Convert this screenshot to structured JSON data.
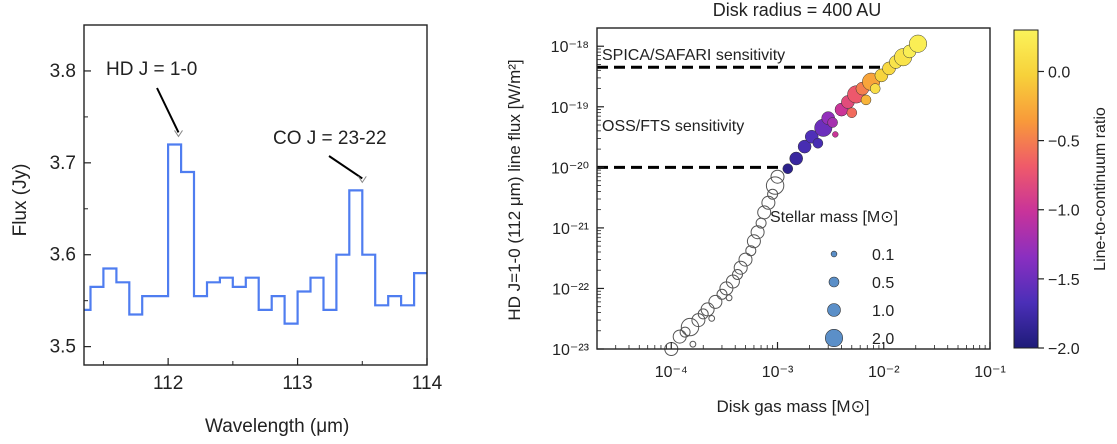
{
  "colors": {
    "spectrum_line": "#4f7df0",
    "axis": "#222222",
    "threshold_line": "#000000",
    "open_marker": "#555555",
    "colormap": [
      "#1e1b78",
      "#4b2fb8",
      "#8a2fc0",
      "#c8339a",
      "#ef5a6a",
      "#f89a3a",
      "#f7d13a",
      "#fbf35a"
    ]
  },
  "chart_data": [
    {
      "type": "line",
      "title": "",
      "xlabel": "Wavelength (μm)",
      "ylabel": "Flux (Jy)",
      "xlim": [
        111.35,
        114.0
      ],
      "ylim": [
        3.48,
        3.85
      ],
      "xticks": [
        "112",
        "113",
        "114"
      ],
      "yticks": [
        "3.5",
        "3.6",
        "3.7",
        "3.8"
      ],
      "x": [
        111.35,
        111.45,
        111.55,
        111.65,
        111.75,
        111.85,
        111.95,
        112.05,
        112.15,
        112.25,
        112.35,
        112.45,
        112.55,
        112.65,
        112.75,
        112.85,
        112.95,
        113.05,
        113.15,
        113.25,
        113.35,
        113.45,
        113.55,
        113.65,
        113.75,
        113.85,
        113.95
      ],
      "y": [
        3.54,
        3.565,
        3.585,
        3.57,
        3.535,
        3.555,
        3.555,
        3.72,
        3.69,
        3.555,
        3.57,
        3.575,
        3.565,
        3.575,
        3.54,
        3.555,
        3.525,
        3.56,
        3.575,
        3.54,
        3.6,
        3.67,
        3.6,
        3.545,
        3.555,
        3.545,
        3.58
      ],
      "annotations": [
        {
          "text": "HD J = 1-0",
          "x": 112.08,
          "y": 3.72
        },
        {
          "text": "CO J = 23-22",
          "x": 113.5,
          "y": 3.67
        }
      ]
    },
    {
      "type": "scatter",
      "title": "Disk radius = 400 AU",
      "xlabel": "Disk gas mass [M⊙]",
      "ylabel": "HD J=1-0 (112 μm) line flux [W/m²]",
      "x_scale": "log",
      "y_scale": "log",
      "xlim": [
        2e-05,
        0.1
      ],
      "ylim": [
        1e-23,
        2e-18
      ],
      "xticks": [
        "10⁻⁴",
        "10⁻³",
        "10⁻²",
        "10⁻¹"
      ],
      "yticks": [
        "10⁻¹⁸",
        "10⁻¹⁹",
        "10⁻²⁰",
        "10⁻²¹",
        "10⁻²²",
        "10⁻²³"
      ],
      "thresholds": [
        {
          "label": "SPICA/SAFARI sensitivity",
          "flux": 4.5e-19,
          "x_end": 0.013
        },
        {
          "label": "OSS/FTS sensitivity",
          "flux": 1e-20,
          "x_end": 0.0013
        }
      ],
      "size_legend": {
        "title": "Stellar mass [M⊙]",
        "entries": [
          {
            "label": "0.1",
            "mass": 0.1
          },
          {
            "label": "0.5",
            "mass": 0.5
          },
          {
            "label": "1.0",
            "mass": 1.0
          },
          {
            "label": "2.0",
            "mass": 2.0
          }
        ]
      },
      "colorbar": {
        "label": "Line-to-continuum ratio",
        "range": [
          -2.0,
          0.3
        ],
        "ticks": [
          "0.0",
          "−0.5",
          "−1.0",
          "−1.5",
          "−2.0"
        ]
      },
      "points": [
        {
          "x": 0.0001,
          "y": 1e-23,
          "m": 1.0,
          "c": null
        },
        {
          "x": 0.00012,
          "y": 1.6e-23,
          "m": 1.0,
          "c": null
        },
        {
          "x": 0.000135,
          "y": 1.9e-23,
          "m": 0.5,
          "c": null
        },
        {
          "x": 0.00015,
          "y": 2.3e-23,
          "m": 2.0,
          "c": null
        },
        {
          "x": 0.00016,
          "y": 1.2e-23,
          "m": 0.1,
          "c": null
        },
        {
          "x": 0.00018,
          "y": 3e-23,
          "m": 1.0,
          "c": null
        },
        {
          "x": 0.0002,
          "y": 3.8e-23,
          "m": 0.5,
          "c": null
        },
        {
          "x": 0.00022,
          "y": 4.5e-23,
          "m": 1.0,
          "c": null
        },
        {
          "x": 0.00024,
          "y": 3.2e-23,
          "m": 0.1,
          "c": null
        },
        {
          "x": 0.00026,
          "y": 6e-23,
          "m": 1.0,
          "c": null
        },
        {
          "x": 0.0003,
          "y": 8e-23,
          "m": 0.5,
          "c": null
        },
        {
          "x": 0.00033,
          "y": 1e-22,
          "m": 1.0,
          "c": null
        },
        {
          "x": 0.00035,
          "y": 7e-23,
          "m": 0.1,
          "c": null
        },
        {
          "x": 0.00038,
          "y": 1.3e-22,
          "m": 1.0,
          "c": null
        },
        {
          "x": 0.00042,
          "y": 1.7e-22,
          "m": 0.5,
          "c": null
        },
        {
          "x": 0.00045,
          "y": 2.2e-22,
          "m": 1.0,
          "c": null
        },
        {
          "x": 0.0005,
          "y": 3e-22,
          "m": 1.0,
          "c": null
        },
        {
          "x": 0.00056,
          "y": 4.2e-22,
          "m": 0.5,
          "c": null
        },
        {
          "x": 0.0006,
          "y": 6e-22,
          "m": 1.0,
          "c": null
        },
        {
          "x": 0.00065,
          "y": 8.5e-22,
          "m": 1.0,
          "c": null
        },
        {
          "x": 0.0007,
          "y": 1.2e-21,
          "m": 0.5,
          "c": null
        },
        {
          "x": 0.00075,
          "y": 1.8e-21,
          "m": 1.0,
          "c": null
        },
        {
          "x": 0.00082,
          "y": 2.6e-21,
          "m": 1.0,
          "c": null
        },
        {
          "x": 0.0009,
          "y": 3.6e-21,
          "m": 0.5,
          "c": null
        },
        {
          "x": 0.00095,
          "y": 5e-21,
          "m": 2.0,
          "c": null
        },
        {
          "x": 0.001,
          "y": 7e-21,
          "m": 1.0,
          "c": null
        },
        {
          "x": 0.00125,
          "y": 9.5e-21,
          "m": 0.5,
          "c": -1.9
        },
        {
          "x": 0.0015,
          "y": 1.4e-20,
          "m": 1.0,
          "c": -1.8
        },
        {
          "x": 0.0018,
          "y": 2.2e-20,
          "m": 1.0,
          "c": -1.7
        },
        {
          "x": 0.0021,
          "y": 3.2e-20,
          "m": 1.0,
          "c": -1.65
        },
        {
          "x": 0.0024,
          "y": 2.5e-20,
          "m": 0.5,
          "c": -1.7
        },
        {
          "x": 0.0027,
          "y": 4.5e-20,
          "m": 2.0,
          "c": -1.5
        },
        {
          "x": 0.003,
          "y": 6.5e-20,
          "m": 1.0,
          "c": -1.3
        },
        {
          "x": 0.0033,
          "y": 5.5e-20,
          "m": 0.5,
          "c": -1.2
        },
        {
          "x": 0.0035,
          "y": 3.5e-20,
          "m": 0.1,
          "c": -1.0
        },
        {
          "x": 0.004,
          "y": 9e-20,
          "m": 1.0,
          "c": -1.0
        },
        {
          "x": 0.0046,
          "y": 1.2e-19,
          "m": 1.0,
          "c": -0.8
        },
        {
          "x": 0.005,
          "y": 8e-20,
          "m": 0.5,
          "c": -0.6
        },
        {
          "x": 0.0055,
          "y": 1.6e-19,
          "m": 2.0,
          "c": -0.7
        },
        {
          "x": 0.0063,
          "y": 2e-19,
          "m": 1.0,
          "c": -0.5
        },
        {
          "x": 0.0068,
          "y": 1.3e-19,
          "m": 0.5,
          "c": -0.2
        },
        {
          "x": 0.0076,
          "y": 2.6e-19,
          "m": 2.0,
          "c": -0.3
        },
        {
          "x": 0.0083,
          "y": 2e-19,
          "m": 0.5,
          "c": 0.1
        },
        {
          "x": 0.0095,
          "y": 3.3e-19,
          "m": 1.0,
          "c": 0.0
        },
        {
          "x": 0.0112,
          "y": 4.3e-19,
          "m": 1.0,
          "c": 0.05
        },
        {
          "x": 0.013,
          "y": 5.5e-19,
          "m": 1.0,
          "c": 0.15
        },
        {
          "x": 0.0152,
          "y": 6.6e-19,
          "m": 2.0,
          "c": 0.15
        },
        {
          "x": 0.0175,
          "y": 8.2e-19,
          "m": 1.0,
          "c": 0.25
        },
        {
          "x": 0.021,
          "y": 1.1e-18,
          "m": 2.0,
          "c": 0.25
        }
      ]
    }
  ]
}
